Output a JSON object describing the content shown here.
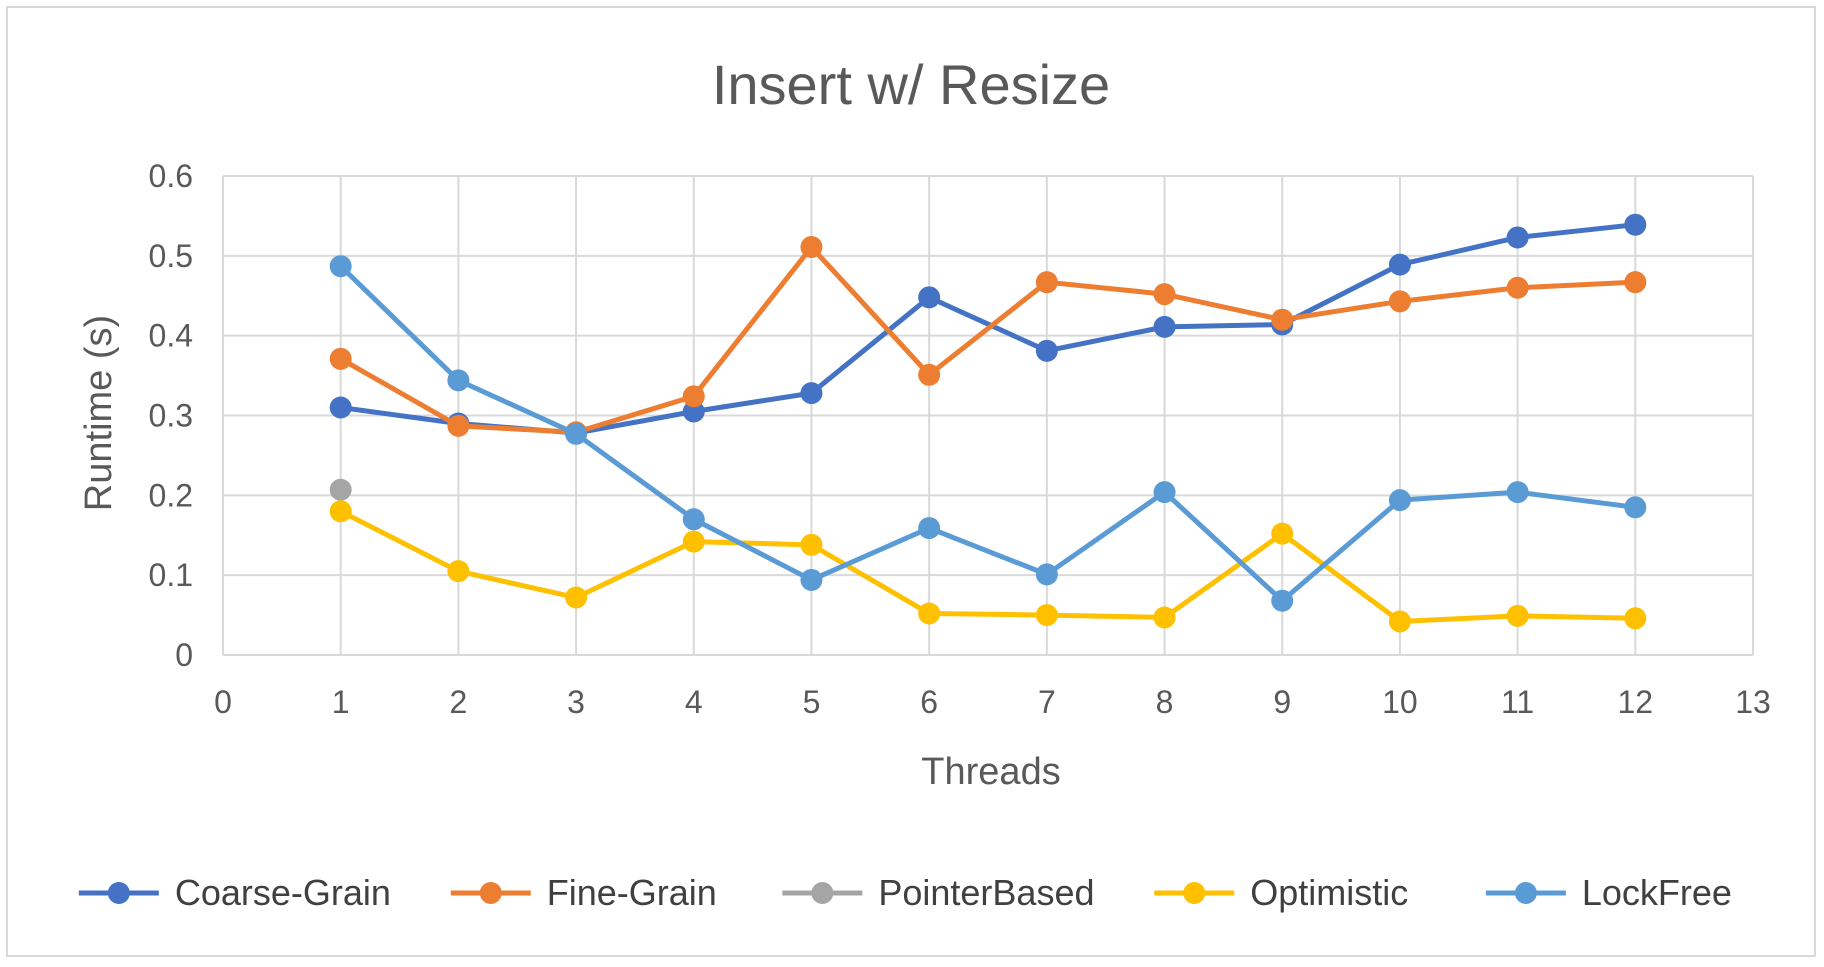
{
  "chart_data": {
    "type": "line",
    "title": "Insert w/ Resize",
    "xlabel": "Threads",
    "ylabel": "Runtime (s)",
    "xlim": [
      0,
      13
    ],
    "ylim": [
      0,
      0.6
    ],
    "x_ticks": [
      0,
      1,
      2,
      3,
      4,
      5,
      6,
      7,
      8,
      9,
      10,
      11,
      12,
      13
    ],
    "y_ticks": [
      0,
      0.1,
      0.2,
      0.3,
      0.4,
      0.5,
      0.6
    ],
    "y_tick_labels": [
      "0",
      "0.1",
      "0.2",
      "0.3",
      "0.4",
      "0.5",
      "0.6"
    ],
    "grid": true,
    "legend_position": "bottom",
    "series": [
      {
        "name": "Coarse-Grain",
        "color": "#4472C4",
        "x": [
          1,
          2,
          3,
          4,
          5,
          6,
          7,
          8,
          9,
          10,
          11,
          12
        ],
        "values": [
          0.31,
          0.29,
          0.278,
          0.305,
          0.328,
          0.448,
          0.381,
          0.411,
          0.414,
          0.489,
          0.523,
          0.539
        ]
      },
      {
        "name": "Fine-Grain",
        "color": "#ED7D31",
        "x": [
          1,
          2,
          3,
          4,
          5,
          6,
          7,
          8,
          9,
          10,
          11,
          12
        ],
        "values": [
          0.371,
          0.287,
          0.279,
          0.324,
          0.511,
          0.351,
          0.467,
          0.452,
          0.42,
          0.443,
          0.46,
          0.467
        ]
      },
      {
        "name": "PointerBased",
        "color": "#A5A5A5",
        "x": [
          1
        ],
        "values": [
          0.207
        ]
      },
      {
        "name": "Optimistic",
        "color": "#FFC000",
        "x": [
          1,
          2,
          3,
          4,
          5,
          6,
          7,
          8,
          9,
          10,
          11,
          12
        ],
        "values": [
          0.18,
          0.105,
          0.072,
          0.142,
          0.138,
          0.052,
          0.05,
          0.047,
          0.152,
          0.042,
          0.049,
          0.046
        ]
      },
      {
        "name": "LockFree",
        "color": "#5B9BD5",
        "x": [
          1,
          2,
          3,
          4,
          5,
          6,
          7,
          8,
          9,
          10,
          11,
          12
        ],
        "values": [
          0.487,
          0.344,
          0.277,
          0.17,
          0.094,
          0.159,
          0.101,
          0.204,
          0.068,
          0.194,
          0.204,
          0.185
        ]
      }
    ]
  }
}
